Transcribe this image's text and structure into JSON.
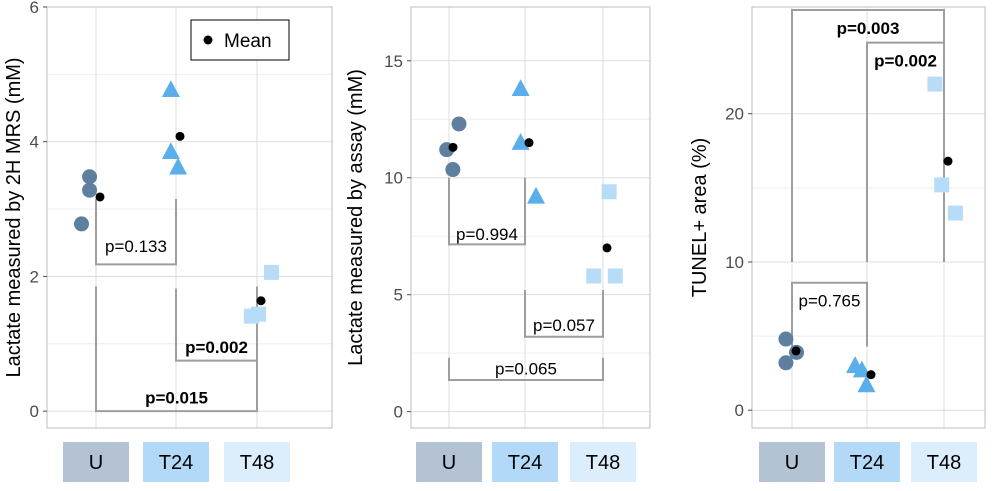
{
  "figure": {
    "colors": {
      "panel_border": "#bdbdbd",
      "grid": "#dddddd",
      "tick_text": "#4d4d4d",
      "bracket": "#9e9e9e",
      "mean_point": "#000000",
      "group_U": "#5f7f9f",
      "group_T24": "#5aaeea",
      "group_T48": "#b6dcf8",
      "strip_U": "#b3c3d3",
      "strip_T24": "#b2daf8",
      "strip_T48": "#dcedfc"
    }
  },
  "chart_data": [
    {
      "type": "scatter",
      "ylabel": "Lactate measured by 2H MRS (mM)",
      "categories": [
        "U",
        "T24",
        "T48"
      ],
      "ylim": [
        -0.25,
        6.0
      ],
      "yticks": [
        0,
        2,
        4,
        6
      ],
      "grid": true,
      "legend": {
        "entries": [
          {
            "label": "Mean",
            "marker": "dot"
          }
        ],
        "position": "top-right"
      },
      "series": [
        {
          "name": "U",
          "marker": "circle",
          "x": [
            0.82,
            0.92,
            0.92
          ],
          "values": [
            2.78,
            3.28,
            3.48
          ]
        },
        {
          "name": "T24",
          "marker": "triangle",
          "x": [
            1.93,
            1.93,
            2.02
          ],
          "values": [
            4.77,
            3.85,
            3.62
          ]
        },
        {
          "name": "T48",
          "marker": "square",
          "x": [
            2.93,
            3.02,
            3.18
          ],
          "values": [
            1.41,
            1.44,
            2.06
          ]
        }
      ],
      "means": [
        3.18,
        4.08,
        1.64
      ],
      "comparisons": [
        {
          "groups": [
            "U",
            "T24"
          ],
          "label": "p=0.133",
          "bold": false,
          "bar": 2.18,
          "tip": 3.15,
          "label_y": 2.45
        },
        {
          "groups": [
            "T24",
            "T48"
          ],
          "label": "p=0.002",
          "bold": true,
          "bar": 0.75,
          "tip": 1.82,
          "label_y": 0.95
        },
        {
          "groups": [
            "U",
            "T48"
          ],
          "label": "p=0.015",
          "bold": true,
          "bar": 0.0,
          "tip": 1.85,
          "label_y": 0.2
        }
      ]
    },
    {
      "type": "scatter",
      "ylabel": "Lactate measured by assay (mM)",
      "categories": [
        "U",
        "T24",
        "T48"
      ],
      "ylim": [
        -0.7,
        17.3
      ],
      "yticks": [
        0,
        5,
        10,
        15
      ],
      "grid": true,
      "series": [
        {
          "name": "U",
          "marker": "circle",
          "x": [
            0.97,
            1.05,
            1.13
          ],
          "values": [
            11.2,
            10.35,
            12.3
          ]
        },
        {
          "name": "T24",
          "marker": "triangle",
          "x": [
            1.93,
            1.93,
            2.13
          ],
          "values": [
            13.8,
            11.5,
            9.2
          ]
        },
        {
          "name": "T48",
          "marker": "square",
          "x": [
            2.88,
            3.08,
            3.16
          ],
          "values": [
            5.8,
            9.4,
            5.8
          ]
        }
      ],
      "means": [
        11.3,
        11.5,
        7.0
      ],
      "comparisons": [
        {
          "groups": [
            "U",
            "T24"
          ],
          "label": "p=0.994",
          "bold": false,
          "bar": 7.15,
          "tip": 10.0,
          "label_y": 7.6
        },
        {
          "groups": [
            "T24",
            "T48"
          ],
          "label": "p=0.057",
          "bold": false,
          "bar": 3.2,
          "tip": 5.2,
          "label_y": 3.7
        },
        {
          "groups": [
            "U",
            "T48"
          ],
          "label": "p=0.065",
          "bold": false,
          "bar": 1.35,
          "tip": 2.3,
          "label_y": 1.85
        }
      ]
    },
    {
      "type": "scatter",
      "ylabel": "TUNEL+ area (%)",
      "categories": [
        "U",
        "T24",
        "T48"
      ],
      "ylim": [
        -1.2,
        27.2
      ],
      "yticks": [
        0,
        10,
        20
      ],
      "grid": true,
      "series": [
        {
          "name": "U",
          "marker": "circle",
          "x": [
            0.92,
            0.92,
            1.06
          ],
          "values": [
            3.2,
            4.8,
            3.9
          ]
        },
        {
          "name": "T24",
          "marker": "triangle",
          "x": [
            1.83,
            1.92,
            1.98
          ],
          "values": [
            3.0,
            2.7,
            1.7
          ]
        },
        {
          "name": "T48",
          "marker": "square",
          "x": [
            2.88,
            2.97,
            3.15
          ],
          "values": [
            22.0,
            15.2,
            13.3
          ]
        }
      ],
      "means": [
        4.0,
        2.4,
        16.8
      ],
      "comparisons": [
        {
          "groups": [
            "U",
            "T24"
          ],
          "label": "p=0.765",
          "bold": false,
          "bar": 8.6,
          "tip": 4.3,
          "label_y": 7.4
        },
        {
          "groups": [
            "T24",
            "T48"
          ],
          "label": "p=0.002",
          "bold": true,
          "bar": 24.8,
          "tip": 10.0,
          "label_y": 23.6
        },
        {
          "groups": [
            "U",
            "T48"
          ],
          "label": "p=0.003",
          "bold": true,
          "bar": 27.0,
          "tip": 10.0,
          "label_y": 25.8
        }
      ]
    }
  ]
}
